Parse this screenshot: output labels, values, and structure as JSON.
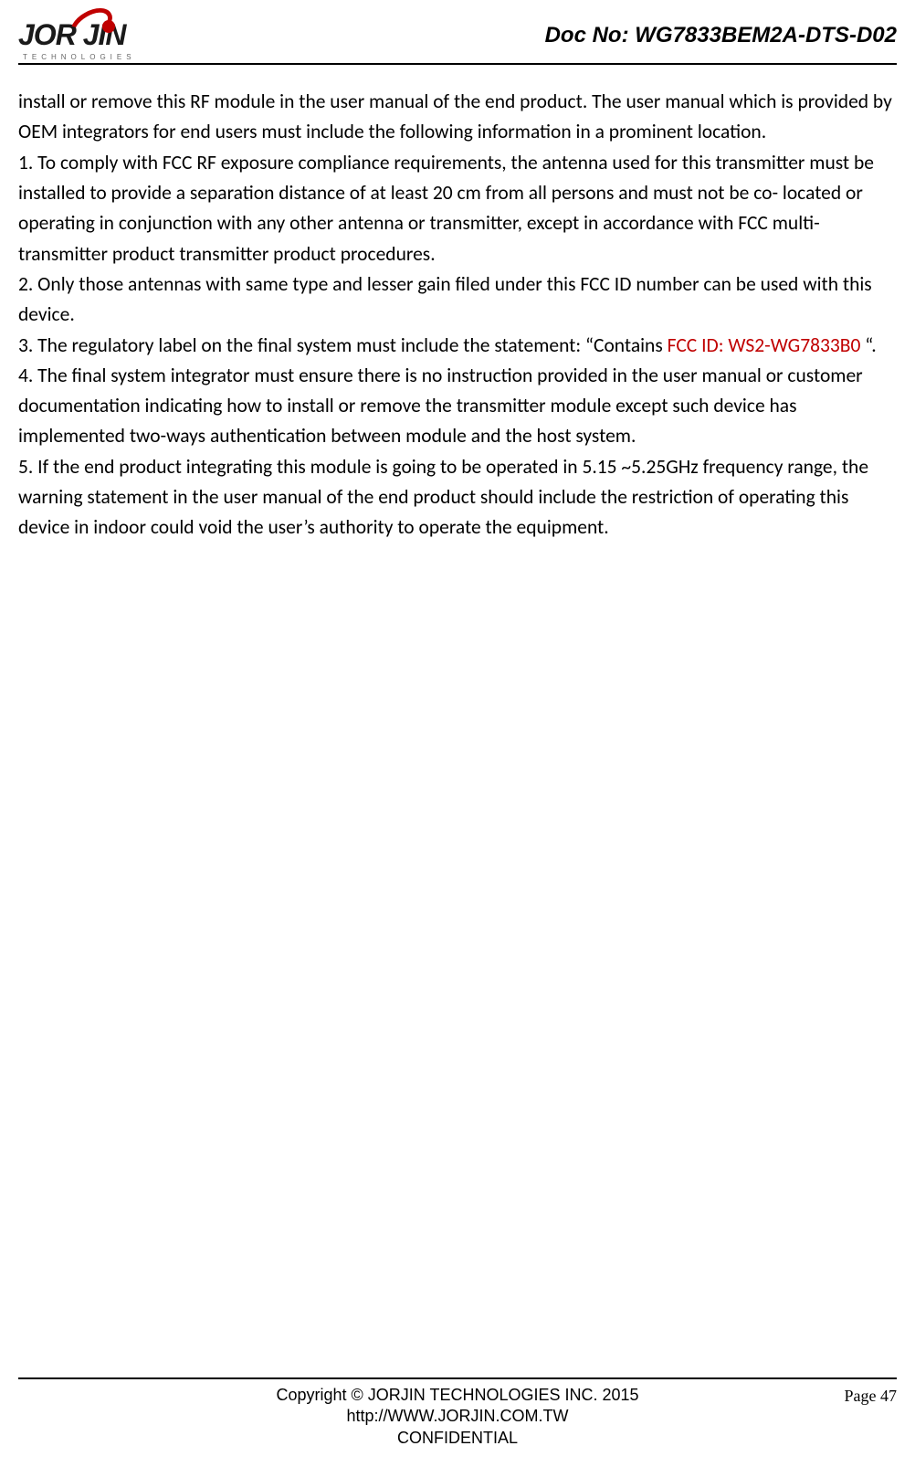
{
  "header": {
    "logo_main": "JOR  JIN",
    "logo_sub": "TECHNOLOGIES",
    "doc_no": "Doc No: WG7833BEM2A-DTS-D02"
  },
  "body": {
    "intro": "install or remove this RF module in the user manual of the end product. The user manual which is provided by OEM integrators for end users must include the following information in a prominent location.",
    "item1": "1. To comply with FCC RF exposure compliance requirements, the antenna used for this transmitter must be installed to provide a separation distance of at least 20 cm from all persons and must not be co- located or operating in conjunction with any other antenna or transmitter, except in accordance with FCC multi-transmitter product transmitter product procedures.",
    "item2": "2. Only those antennas with same type and lesser gain filed under this FCC ID number can be used with this device.",
    "item3_pre": "3. The regulatory label on the final system must include the statement: “Contains ",
    "item3_red": "FCC ID: WS2-WG7833B0",
    "item3_post": " “.",
    "item4": "4. The final system integrator must ensure there is no instruction provided in the user manual or customer documentation indicating how to install or remove the transmitter module except such device has implemented two-ways authentication between module and the host system.",
    "item5": "5. If the end product integrating this module is going to be operated in 5.15 ~5.25GHz frequency range, the warning statement in the user manual of the end product should include the restriction of operating this device in indoor could void the user’s authority to operate the equipment."
  },
  "footer": {
    "copyright": "Copyright © JORJIN TECHNOLOGIES INC. 2015",
    "url": "http://WWW.JORJIN.COM.TW",
    "confidential": "CONFIDENTIAL",
    "page": "Page 47"
  },
  "colors": {
    "text": "#000000",
    "highlight": "#c00000",
    "background": "#ffffff"
  }
}
